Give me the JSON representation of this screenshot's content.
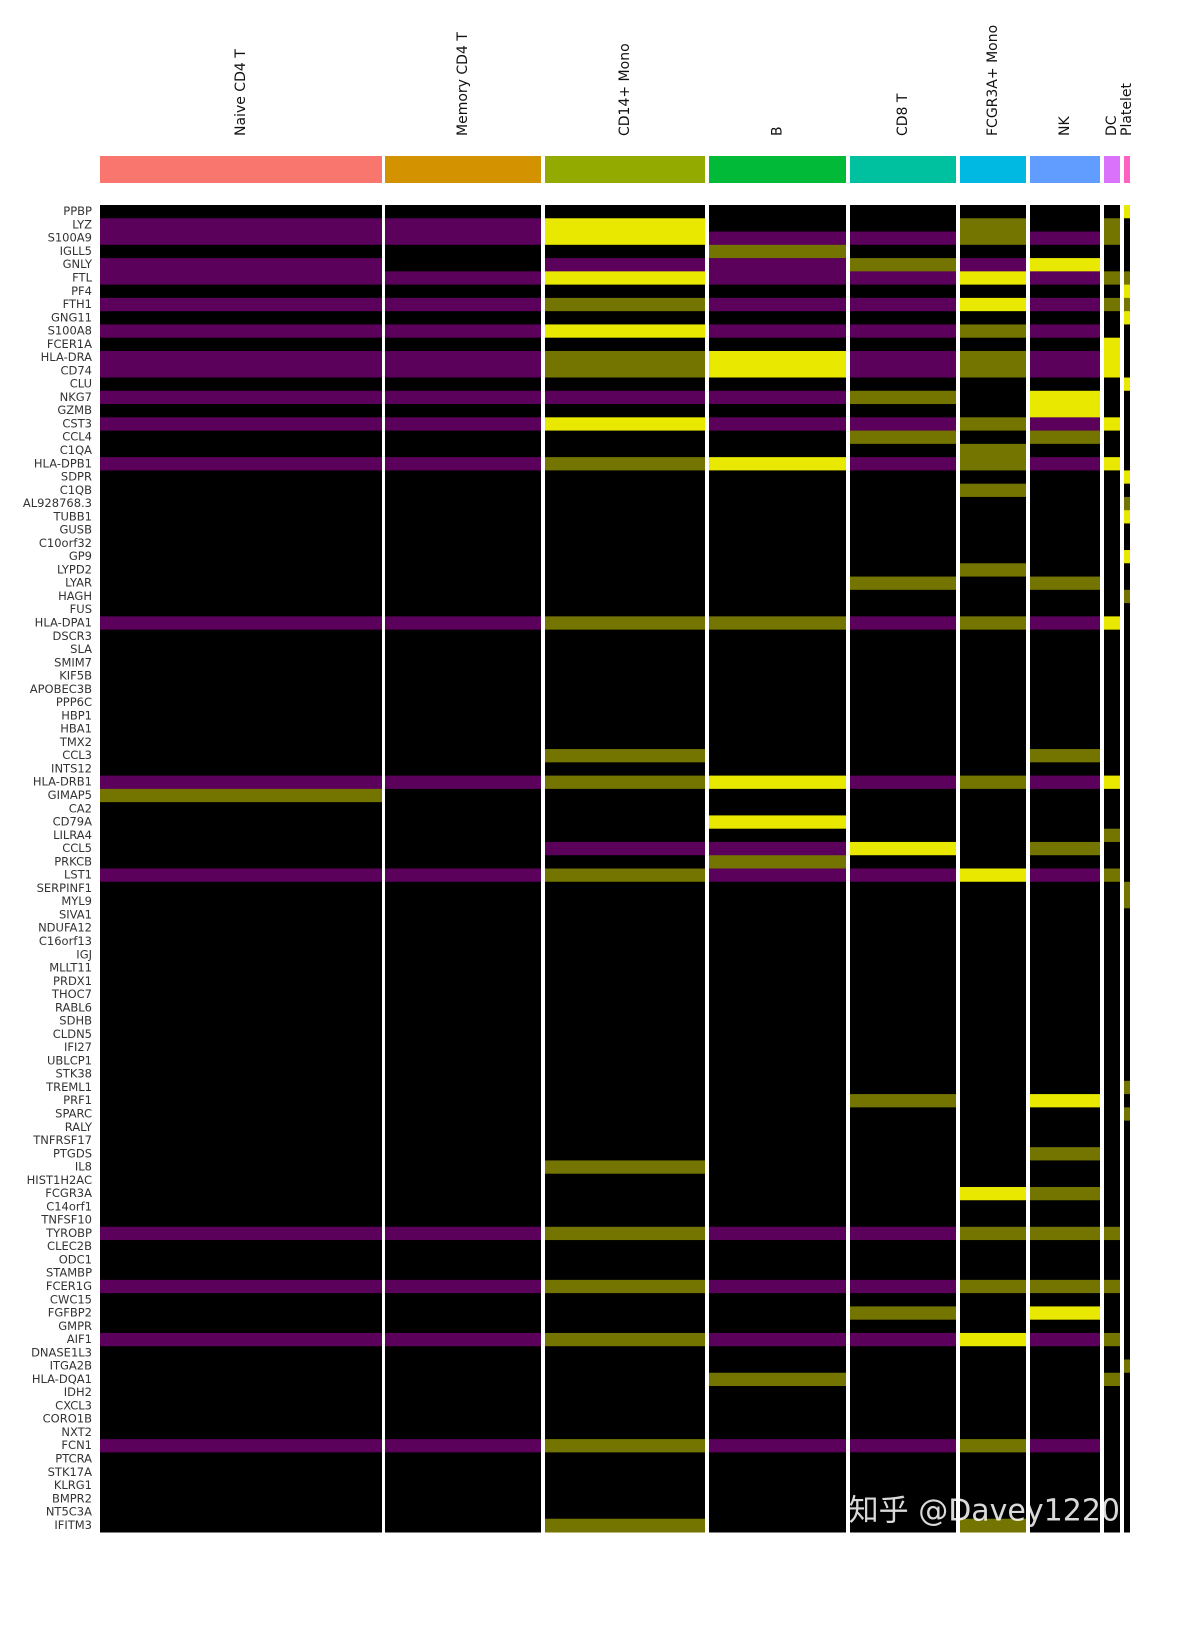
{
  "chart_data": {
    "type": "heatmap",
    "clusters": [
      "Naive CD4 T",
      "Memory CD4 T",
      "CD14+ Mono",
      "B",
      "CD8 T",
      "FCGR3A+ Mono",
      "NK",
      "DC",
      "Platelet"
    ],
    "cluster_colors": [
      "#F8766D",
      "#D39200",
      "#93AA00",
      "#00BA38",
      "#00C19F",
      "#00B9E3",
      "#619CFF",
      "#DB72FB",
      "#FF61C3"
    ],
    "genes": [
      "PPBP",
      "LYZ",
      "S100A9",
      "IGLL5",
      "GNLY",
      "FTL",
      "PF4",
      "FTH1",
      "GNG11",
      "S100A8",
      "FCER1A",
      "HLA-DRA",
      "CD74",
      "CLU",
      "NKG7",
      "GZMB",
      "CST3",
      "CCL4",
      "C1QA",
      "HLA-DPB1",
      "SDPR",
      "C1QB",
      "AL928768.3",
      "TUBB1",
      "GUSB",
      "C10orf32",
      "GP9",
      "LYPD2",
      "LYAR",
      "HAGH",
      "FUS",
      "HLA-DPA1",
      "DSCR3",
      "SLA",
      "SMIM7",
      "KIF5B",
      "APOBEC3B",
      "PPP6C",
      "HBP1",
      "HBA1",
      "TMX2",
      "CCL3",
      "INTS12",
      "HLA-DRB1",
      "GIMAP5",
      "CA2",
      "CD79A",
      "LILRA4",
      "CCL5",
      "PRKCB",
      "LST1",
      "SERPINF1",
      "MYL9",
      "SIVA1",
      "NDUFA12",
      "C16orf13",
      "IGJ",
      "MLLT11",
      "PRDX1",
      "THOC7",
      "RABL6",
      "SDHB",
      "CLDN5",
      "IFI27",
      "UBLCP1",
      "STK38",
      "TREML1",
      "PRF1",
      "SPARC",
      "RALY",
      "TNFRSF17",
      "PTGDS",
      "IL8",
      "HIST1H2AC",
      "FCGR3A",
      "C14orf1",
      "TNFSF10",
      "TYROBP",
      "CLEC2B",
      "ODC1",
      "STAMBP",
      "FCER1G",
      "CWC15",
      "FGFBP2",
      "GMPR",
      "AIF1",
      "DNASE1L3",
      "ITGA2B",
      "HLA-DQA1",
      "IDH2",
      "CXCL3",
      "CORO1B",
      "NXT2",
      "FCN1",
      "PTCRA",
      "STK17A",
      "KLRG1",
      "BMPR2",
      "NT5C3A",
      "IFITM3"
    ],
    "values": [
      [
        0,
        0,
        0,
        0,
        0,
        0,
        0,
        0,
        2
      ],
      [
        -1,
        -1,
        2,
        0,
        0,
        1,
        0,
        1,
        0
      ],
      [
        -1,
        -1,
        2,
        -1,
        -1,
        1,
        -1,
        1,
        0
      ],
      [
        0,
        0,
        0,
        1,
        0,
        0,
        0,
        0,
        0
      ],
      [
        -1,
        0,
        -1,
        -1,
        1,
        -1,
        2,
        0,
        0
      ],
      [
        -1,
        -1,
        2,
        -1,
        -1,
        2,
        -1,
        1,
        1
      ],
      [
        0,
        0,
        0,
        0,
        0,
        0,
        0,
        0,
        2
      ],
      [
        -1,
        -1,
        1,
        -1,
        -1,
        2,
        -1,
        1,
        1
      ],
      [
        0,
        0,
        0,
        0,
        0,
        0,
        0,
        0,
        2
      ],
      [
        -1,
        -1,
        2,
        -1,
        -1,
        1,
        -1,
        0,
        0
      ],
      [
        0,
        0,
        0,
        0,
        0,
        0,
        0,
        2,
        0
      ],
      [
        -1,
        -1,
        1,
        2,
        -1,
        1,
        -1,
        2,
        0
      ],
      [
        -1,
        -1,
        1,
        2,
        -1,
        1,
        -1,
        2,
        0
      ],
      [
        0,
        0,
        0,
        0,
        0,
        0,
        0,
        0,
        2
      ],
      [
        -1,
        -1,
        -1,
        -1,
        1,
        0,
        2,
        0,
        0
      ],
      [
        0,
        0,
        0,
        0,
        0,
        0,
        2,
        0,
        0
      ],
      [
        -1,
        -1,
        2,
        -1,
        -1,
        1,
        -1,
        2,
        0
      ],
      [
        0,
        0,
        0,
        0,
        1,
        0,
        1,
        0,
        0
      ],
      [
        0,
        0,
        0,
        0,
        0,
        1,
        0,
        0,
        0
      ],
      [
        -1,
        -1,
        1,
        2,
        -1,
        1,
        -1,
        2,
        0
      ],
      [
        0,
        0,
        0,
        0,
        0,
        0,
        0,
        0,
        2
      ],
      [
        0,
        0,
        0,
        0,
        0,
        1,
        0,
        0,
        0
      ],
      [
        0,
        0,
        0,
        0,
        0,
        0,
        0,
        0,
        1
      ],
      [
        0,
        0,
        0,
        0,
        0,
        0,
        0,
        0,
        2
      ],
      [
        0,
        0,
        0,
        0,
        0,
        0,
        0,
        0,
        0
      ],
      [
        0,
        0,
        0,
        0,
        0,
        0,
        0,
        0,
        0
      ],
      [
        0,
        0,
        0,
        0,
        0,
        0,
        0,
        0,
        2
      ],
      [
        0,
        0,
        0,
        0,
        0,
        1,
        0,
        0,
        0
      ],
      [
        0,
        0,
        0,
        0,
        1,
        0,
        1,
        0,
        0
      ],
      [
        0,
        0,
        0,
        0,
        0,
        0,
        0,
        0,
        1
      ],
      [
        0,
        0,
        0,
        0,
        0,
        0,
        0,
        0,
        0
      ],
      [
        -1,
        -1,
        1,
        1,
        -1,
        1,
        -1,
        2,
        0
      ],
      [
        0,
        0,
        0,
        0,
        0,
        0,
        0,
        0,
        0
      ],
      [
        0,
        0,
        0,
        0,
        0,
        0,
        0,
        0,
        0
      ],
      [
        0,
        0,
        0,
        0,
        0,
        0,
        0,
        0,
        0
      ],
      [
        0,
        0,
        0,
        0,
        0,
        0,
        0,
        0,
        0
      ],
      [
        0,
        0,
        0,
        0,
        0,
        0,
        0,
        0,
        0
      ],
      [
        0,
        0,
        0,
        0,
        0,
        0,
        0,
        0,
        0
      ],
      [
        0,
        0,
        0,
        0,
        0,
        0,
        0,
        0,
        0
      ],
      [
        0,
        0,
        0,
        0,
        0,
        0,
        0,
        0,
        0
      ],
      [
        0,
        0,
        0,
        0,
        0,
        0,
        0,
        0,
        0
      ],
      [
        0,
        0,
        1,
        0,
        0,
        0,
        1,
        0,
        0
      ],
      [
        0,
        0,
        0,
        0,
        0,
        0,
        0,
        0,
        0
      ],
      [
        -1,
        -1,
        1,
        2,
        -1,
        1,
        -1,
        2,
        0
      ],
      [
        1,
        0,
        0,
        0,
        0,
        0,
        0,
        0,
        0
      ],
      [
        0,
        0,
        0,
        0,
        0,
        0,
        0,
        0,
        0
      ],
      [
        0,
        0,
        0,
        2,
        0,
        0,
        0,
        0,
        0
      ],
      [
        0,
        0,
        0,
        0,
        0,
        0,
        0,
        1,
        0
      ],
      [
        0,
        0,
        -1,
        -1,
        2,
        0,
        1,
        0,
        0
      ],
      [
        0,
        0,
        0,
        1,
        0,
        0,
        0,
        0,
        0
      ],
      [
        -1,
        -1,
        1,
        -1,
        -1,
        2,
        -1,
        1,
        0
      ],
      [
        0,
        0,
        0,
        0,
        0,
        0,
        0,
        0,
        1
      ],
      [
        0,
        0,
        0,
        0,
        0,
        0,
        0,
        0,
        1
      ],
      [
        0,
        0,
        0,
        0,
        0,
        0,
        0,
        0,
        0
      ],
      [
        0,
        0,
        0,
        0,
        0,
        0,
        0,
        0,
        0
      ],
      [
        0,
        0,
        0,
        0,
        0,
        0,
        0,
        0,
        0
      ],
      [
        0,
        0,
        0,
        0,
        0,
        0,
        0,
        0,
        0
      ],
      [
        0,
        0,
        0,
        0,
        0,
        0,
        0,
        0,
        0
      ],
      [
        0,
        0,
        0,
        0,
        0,
        0,
        0,
        0,
        0
      ],
      [
        0,
        0,
        0,
        0,
        0,
        0,
        0,
        0,
        0
      ],
      [
        0,
        0,
        0,
        0,
        0,
        0,
        0,
        0,
        0
      ],
      [
        0,
        0,
        0,
        0,
        0,
        0,
        0,
        0,
        0
      ],
      [
        0,
        0,
        0,
        0,
        0,
        0,
        0,
        0,
        0
      ],
      [
        0,
        0,
        0,
        0,
        0,
        0,
        0,
        0,
        0
      ],
      [
        0,
        0,
        0,
        0,
        0,
        0,
        0,
        0,
        0
      ],
      [
        0,
        0,
        0,
        0,
        0,
        0,
        0,
        0,
        0
      ],
      [
        0,
        0,
        0,
        0,
        0,
        0,
        0,
        0,
        1
      ],
      [
        0,
        0,
        0,
        0,
        1,
        0,
        2,
        0,
        0
      ],
      [
        0,
        0,
        0,
        0,
        0,
        0,
        0,
        0,
        1
      ],
      [
        0,
        0,
        0,
        0,
        0,
        0,
        0,
        0,
        0
      ],
      [
        0,
        0,
        0,
        0,
        0,
        0,
        0,
        0,
        0
      ],
      [
        0,
        0,
        0,
        0,
        0,
        0,
        1,
        0,
        0
      ],
      [
        0,
        0,
        1,
        0,
        0,
        0,
        0,
        0,
        0
      ],
      [
        0,
        0,
        0,
        0,
        0,
        0,
        0,
        0,
        0
      ],
      [
        0,
        0,
        0,
        0,
        0,
        2,
        1,
        0,
        0
      ],
      [
        0,
        0,
        0,
        0,
        0,
        0,
        0,
        0,
        0
      ],
      [
        0,
        0,
        0,
        0,
        0,
        0,
        0,
        0,
        0
      ],
      [
        -1,
        -1,
        1,
        -1,
        -1,
        1,
        1,
        1,
        0
      ],
      [
        0,
        0,
        0,
        0,
        0,
        0,
        0,
        0,
        0
      ],
      [
        0,
        0,
        0,
        0,
        0,
        0,
        0,
        0,
        0
      ],
      [
        0,
        0,
        0,
        0,
        0,
        0,
        0,
        0,
        0
      ],
      [
        -1,
        -1,
        1,
        -1,
        -1,
        1,
        1,
        1,
        0
      ],
      [
        0,
        0,
        0,
        0,
        0,
        0,
        0,
        0,
        0
      ],
      [
        0,
        0,
        0,
        0,
        1,
        0,
        2,
        0,
        0
      ],
      [
        0,
        0,
        0,
        0,
        0,
        0,
        0,
        0,
        0
      ],
      [
        -1,
        -1,
        1,
        -1,
        -1,
        2,
        -1,
        1,
        0
      ],
      [
        0,
        0,
        0,
        0,
        0,
        0,
        0,
        0,
        0
      ],
      [
        0,
        0,
        0,
        0,
        0,
        0,
        0,
        0,
        1
      ],
      [
        0,
        0,
        0,
        1,
        0,
        0,
        0,
        1,
        0
      ],
      [
        0,
        0,
        0,
        0,
        0,
        0,
        0,
        0,
        0
      ],
      [
        0,
        0,
        0,
        0,
        0,
        0,
        0,
        0,
        0
      ],
      [
        0,
        0,
        0,
        0,
        0,
        0,
        0,
        0,
        0
      ],
      [
        0,
        0,
        0,
        0,
        0,
        0,
        0,
        0,
        0
      ],
      [
        -1,
        -1,
        1,
        -1,
        -1,
        1,
        -1,
        0,
        0
      ],
      [
        0,
        0,
        0,
        0,
        0,
        0,
        0,
        0,
        0
      ],
      [
        0,
        0,
        0,
        0,
        0,
        0,
        0,
        0,
        0
      ],
      [
        0,
        0,
        0,
        0,
        0,
        0,
        0,
        0,
        0
      ],
      [
        0,
        0,
        0,
        0,
        0,
        0,
        0,
        0,
        0
      ],
      [
        0,
        0,
        0,
        0,
        0,
        0,
        0,
        0,
        0
      ],
      [
        0,
        0,
        1,
        0,
        0,
        1,
        0,
        0,
        0
      ]
    ],
    "watermark": "知乎 @Davey1220"
  }
}
